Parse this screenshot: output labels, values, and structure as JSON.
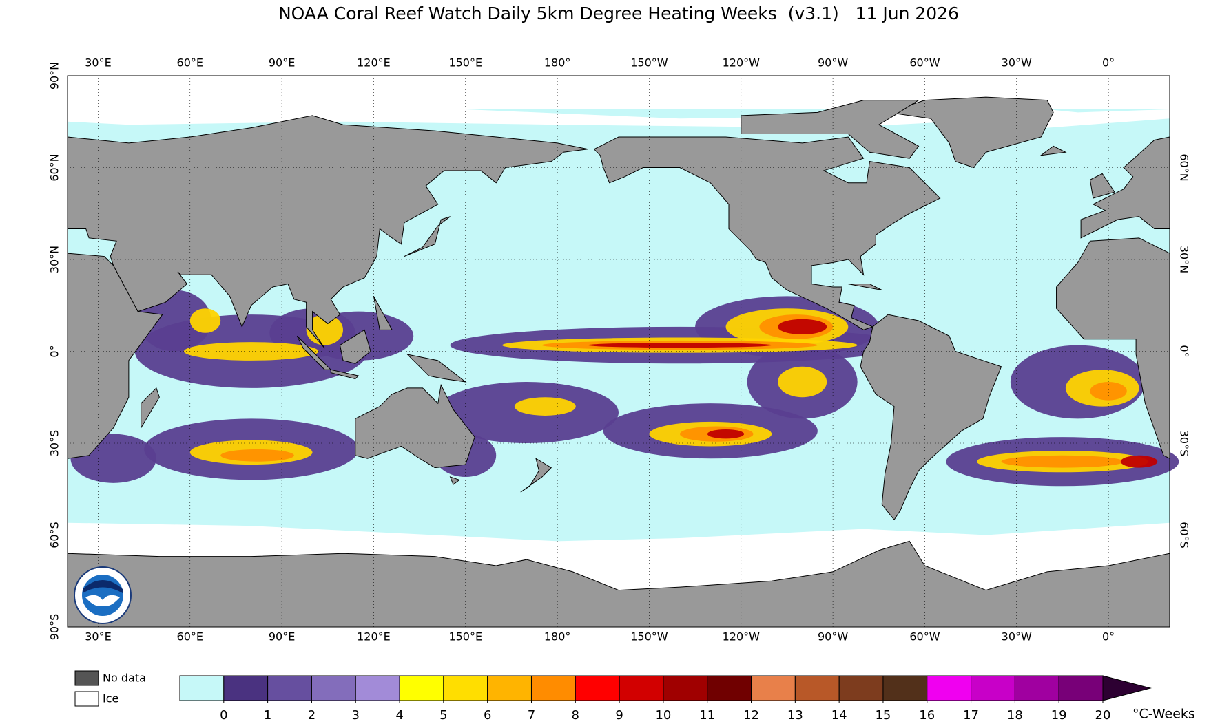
{
  "map": {
    "title": "NOAA Coral Reef Watch Daily 5km Degree Heating Weeks  (v3.1)   11 Jun 2026",
    "lon_labels": [
      "30°E",
      "60°E",
      "90°E",
      "120°E",
      "150°E",
      "180°",
      "150°W",
      "120°W",
      "90°W",
      "60°W",
      "30°W",
      "0°"
    ],
    "lat_labels_left": [
      "90°N",
      "60°N",
      "30°N",
      "0°",
      "30°S",
      "60°S",
      "90°S"
    ],
    "lat_labels_right": [
      "60°N",
      "30°N",
      "0°",
      "30°S",
      "60°S"
    ],
    "legend": {
      "no_data": "No data",
      "ice": "Ice"
    },
    "colorbar": {
      "ticks": [
        0,
        1,
        2,
        3,
        4,
        5,
        6,
        7,
        8,
        9,
        10,
        11,
        12,
        13,
        14,
        15,
        16,
        17,
        18,
        19,
        20
      ],
      "colors": [
        "#c6f8f8",
        "#4a3280",
        "#664f9f",
        "#836dbb",
        "#a28bd8",
        "#ffff00",
        "#ffde00",
        "#ffb400",
        "#ff8c00",
        "#ff0000",
        "#d20000",
        "#a00000",
        "#700000",
        "#e8804a",
        "#b85828",
        "#7d3c1e",
        "#52301a",
        "#f000f0",
        "#c800c8",
        "#a000a0",
        "#780078",
        "#2d0032"
      ],
      "unit": "°C-Weeks"
    }
  }
}
